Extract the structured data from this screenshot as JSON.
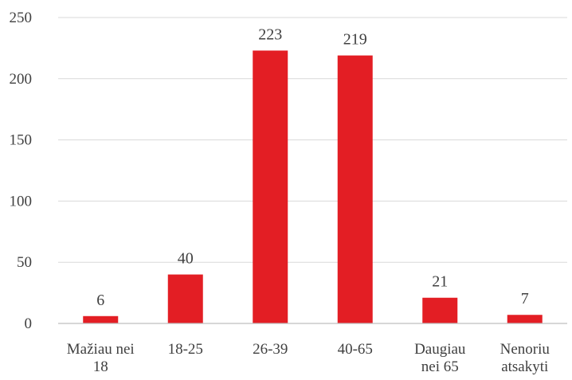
{
  "chart_data": {
    "type": "bar",
    "title": "",
    "xlabel": "",
    "ylabel": "",
    "categories": [
      [
        "Mažiau nei",
        "18"
      ],
      [
        "18-25"
      ],
      [
        "26-39"
      ],
      [
        "40-65"
      ],
      [
        "Daugiau",
        "nei 65"
      ],
      [
        "Nenoriu",
        "atsakyti"
      ]
    ],
    "values": [
      6,
      40,
      223,
      219,
      21,
      7
    ],
    "data_labels": [
      "6",
      "40",
      "223",
      "219",
      "21",
      "7"
    ],
    "yticks": [
      0,
      50,
      100,
      150,
      200,
      250
    ],
    "ytick_labels": [
      "0",
      "50",
      "100",
      "150",
      "200",
      "250"
    ],
    "ylim": [
      0,
      250
    ],
    "grid": true,
    "legend": "none",
    "colors": {
      "bar": "#e31e24",
      "grid": "#d9d9d9",
      "axis": "#bfbfbf",
      "text": "#404040"
    }
  }
}
